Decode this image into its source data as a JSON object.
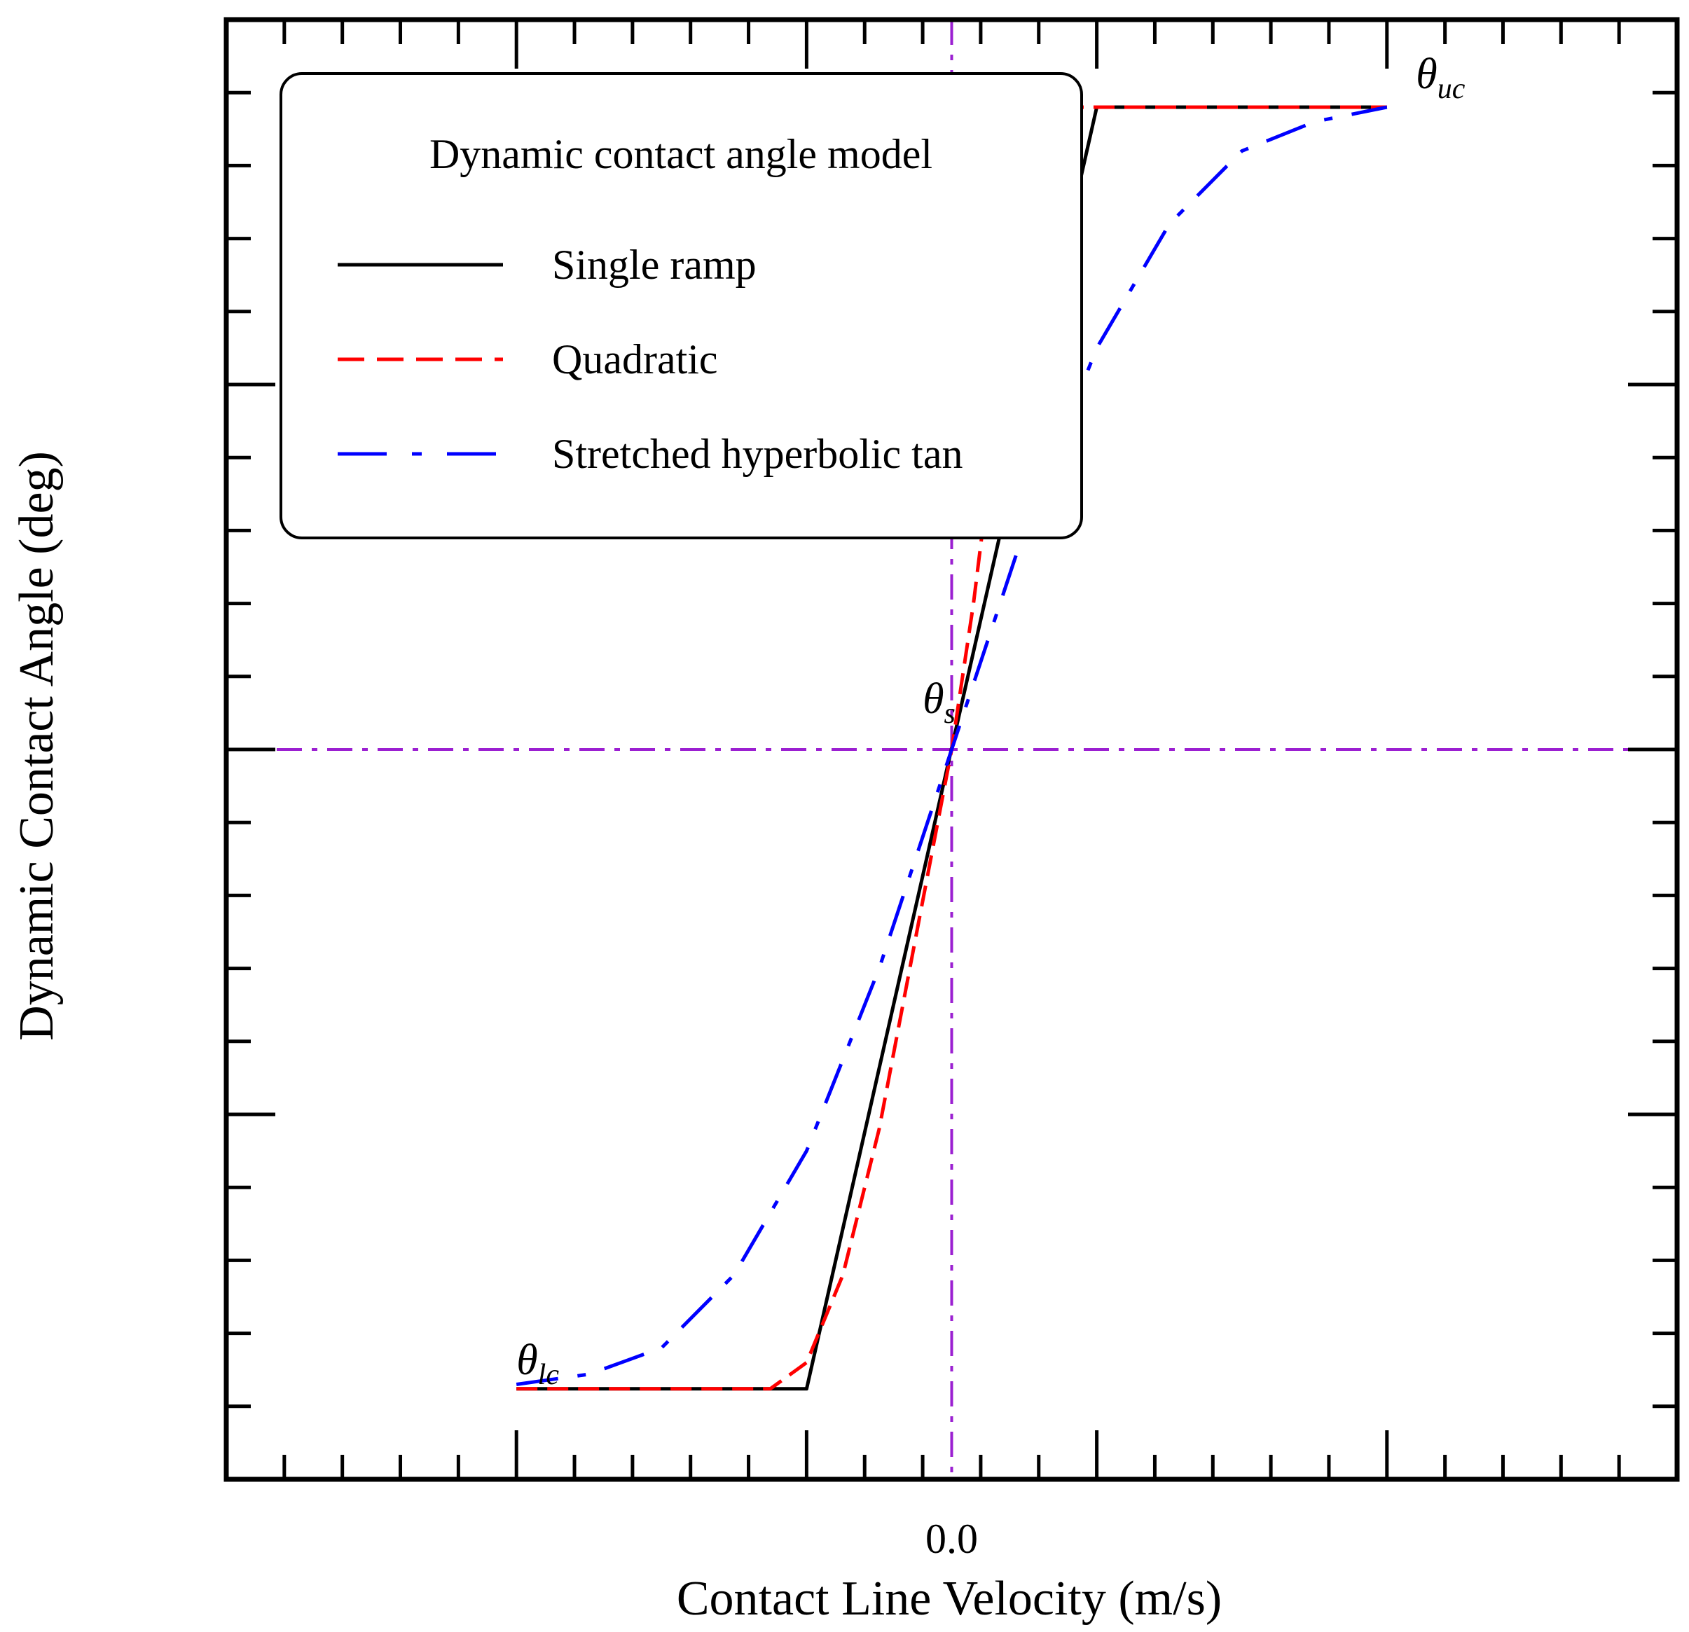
{
  "chart_data": {
    "type": "line",
    "title": "",
    "xlabel": "Contact Line Velocity (m/s)",
    "ylabel": "Dynamic Contact Angle (deg)",
    "x_tick_labels": [
      {
        "value": 0.0,
        "label": "0.0"
      }
    ],
    "xlim": [
      -1.0,
      1.0
    ],
    "ylim": [
      0.0,
      1.0
    ],
    "reference_lines": [
      {
        "orientation": "vertical",
        "value": 0.0,
        "color": "#9b1fd1",
        "style": "dash-dot"
      },
      {
        "orientation": "horizontal",
        "value": 0.5,
        "color": "#9b1fd1",
        "style": "dash-dot"
      }
    ],
    "annotations": [
      {
        "symbol": "θ",
        "subscript": "uc",
        "x": 0.64,
        "y": 0.953
      },
      {
        "symbol": "θ",
        "subscript": "s",
        "x": -0.04,
        "y": 0.525
      },
      {
        "symbol": "θ",
        "subscript": "lc",
        "x": -0.6,
        "y": 0.072
      }
    ],
    "legend": {
      "title": "Dynamic contact angle model",
      "placement": "top-left",
      "entries": [
        {
          "name": "Single ramp",
          "color": "#000000",
          "style": "solid"
        },
        {
          "name": "Quadratic",
          "color": "#ff0000",
          "style": "dashed"
        },
        {
          "name": "Stretched hyperbolic tan",
          "color": "#0000ff",
          "style": "long-dash-dot"
        }
      ]
    },
    "series": [
      {
        "name": "Single ramp",
        "color": "#000000",
        "style": "solid",
        "x": [
          -0.6,
          -0.2,
          0.2,
          0.6
        ],
        "y": [
          0.062,
          0.062,
          0.94,
          0.94
        ]
      },
      {
        "name": "Quadratic",
        "color": "#ff0000",
        "style": "dashed",
        "x": [
          -0.6,
          -0.25,
          -0.2,
          -0.15,
          -0.1,
          -0.05,
          0.0,
          0.03,
          0.06,
          0.08,
          0.1,
          0.12,
          0.6
        ],
        "y": [
          0.062,
          0.062,
          0.08,
          0.14,
          0.24,
          0.37,
          0.5,
          0.6,
          0.72,
          0.82,
          0.89,
          0.94,
          0.94
        ]
      },
      {
        "name": "Stretched hyperbolic tan",
        "color": "#0000ff",
        "style": "long-dash-dot",
        "x": [
          -0.6,
          -0.5,
          -0.4,
          -0.3,
          -0.2,
          -0.1,
          0.0,
          0.1,
          0.2,
          0.3,
          0.4,
          0.5,
          0.6
        ],
        "y": [
          0.065,
          0.072,
          0.09,
          0.14,
          0.225,
          0.35,
          0.5,
          0.65,
          0.775,
          0.86,
          0.91,
          0.93,
          0.94
        ]
      }
    ]
  }
}
